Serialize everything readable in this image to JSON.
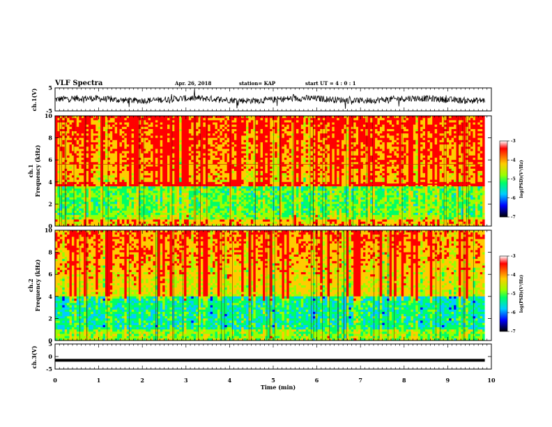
{
  "header": {
    "title": "VLF Spectra",
    "date": "Apr. 26, 2018",
    "station": "station= KAP",
    "start": "start  UT =   4 : 0  : 1"
  },
  "chart_data": [
    {
      "type": "line",
      "panel": "waveform-ch1",
      "ylabel": "ch.1(V)",
      "ylim": [
        -5,
        5
      ],
      "yticks": [
        "5",
        "-5"
      ],
      "xlim": [
        0,
        10
      ],
      "color": "#000000",
      "x_end": 9.85
    },
    {
      "type": "heatmap",
      "panel": "spectrogram-ch1",
      "ylabel_line1": "ch.1",
      "ylabel_line2": "Frequency (kHz)",
      "ylim": [
        0,
        10
      ],
      "yticks": [
        "0",
        "2",
        "4",
        "6",
        "8",
        "10"
      ],
      "xlim": [
        0,
        10
      ],
      "x_end": 9.85,
      "colorbar": {
        "label": "log(PSD)(V²/Hz)",
        "range": [
          -7,
          -3
        ],
        "ticks": [
          "-3",
          "-4",
          "-5",
          "-6",
          "-7"
        ]
      }
    },
    {
      "type": "heatmap",
      "panel": "spectrogram-ch2",
      "ylabel_line1": "ch.2",
      "ylabel_line2": "Frequency (kHz)",
      "ylim": [
        0,
        10
      ],
      "yticks": [
        "0",
        "2",
        "4",
        "6",
        "8",
        "10"
      ],
      "xlim": [
        0,
        10
      ],
      "x_end": 9.85,
      "colorbar": {
        "label": "log(PSD)(V²/Hz)",
        "range": [
          -7,
          -3
        ],
        "ticks": [
          "-3",
          "-4",
          "-5",
          "-6",
          "-7"
        ]
      }
    },
    {
      "type": "line",
      "panel": "waveform-ch3",
      "ylabel": "ch.3(V)",
      "ylim": [
        -5,
        5
      ],
      "yticks": [
        "5",
        "0",
        "-5"
      ],
      "xlim": [
        0,
        10
      ],
      "level": -1.5,
      "x_end": 9.85
    }
  ],
  "xaxis": {
    "label": "Time (min)",
    "ticks": [
      "0",
      "1",
      "2",
      "3",
      "4",
      "5",
      "6",
      "7",
      "8",
      "9",
      "10"
    ]
  },
  "colormap": [
    "#ffffff",
    "#ff0000",
    "#ffcc00",
    "#99ff00",
    "#00ff66",
    "#00ccff",
    "#0000ff",
    "#000000"
  ]
}
